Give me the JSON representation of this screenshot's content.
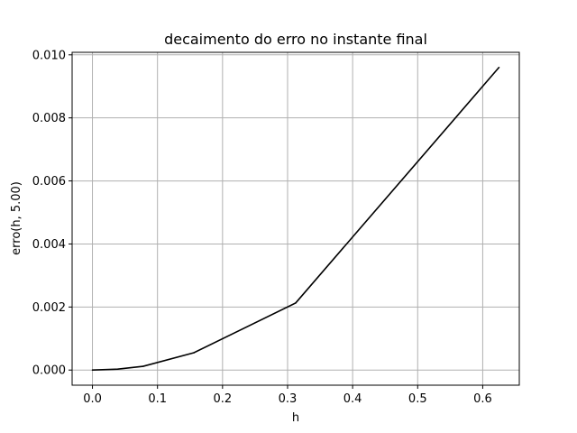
{
  "chart_data": {
    "type": "line",
    "title": "decaimento do erro no instante final",
    "xlabel": "h",
    "ylabel": "erro(h, 5.00)",
    "xlim": [
      -0.03125,
      0.65625
    ],
    "ylim": [
      -0.00048,
      0.01008
    ],
    "xticks": [
      0.0,
      0.1,
      0.2,
      0.3,
      0.4,
      0.5,
      0.6
    ],
    "xtick_labels": [
      "0.0",
      "0.1",
      "0.2",
      "0.3",
      "0.4",
      "0.5",
      "0.6"
    ],
    "yticks": [
      0.0,
      0.002,
      0.004,
      0.006,
      0.008,
      0.01
    ],
    "ytick_labels": [
      "0.000",
      "0.002",
      "0.004",
      "0.006",
      "0.008",
      "0.010"
    ],
    "grid": true,
    "line_color": "#000000",
    "series": [
      {
        "x": [
          0.0,
          0.039,
          0.078,
          0.156,
          0.3125,
          0.625
        ],
        "y": [
          0.0,
          3e-05,
          0.00012,
          0.00055,
          0.00213,
          0.0096
        ]
      }
    ]
  }
}
